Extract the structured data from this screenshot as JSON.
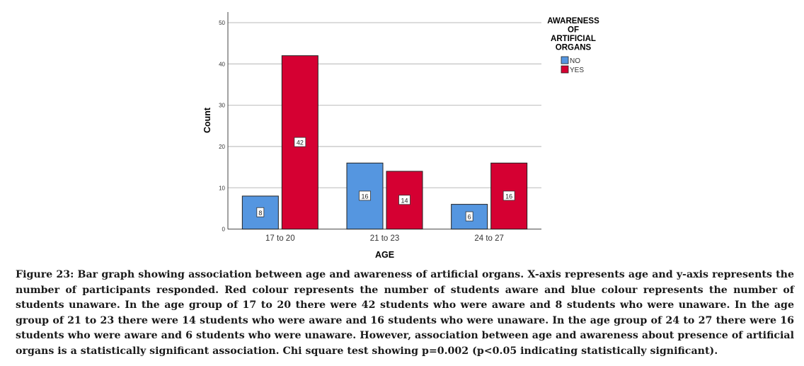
{
  "chart_data": {
    "type": "bar",
    "categories": [
      "17 to 20",
      "21 to 23",
      "24 to 27"
    ],
    "series": [
      {
        "name": "NO",
        "color": "#5596e0",
        "values": [
          8,
          16,
          6
        ]
      },
      {
        "name": "YES",
        "color": "#d50032",
        "values": [
          42,
          14,
          16
        ]
      }
    ],
    "xlabel": "AGE",
    "ylabel": "Count",
    "ylim": [
      0,
      50
    ],
    "yticks": [
      0,
      10,
      20,
      30,
      40,
      50
    ],
    "grid": true,
    "legend_title": [
      "AWARENESS",
      "OF",
      "ARTIFICIAL",
      "ORGANS"
    ],
    "legend_placement": "top-right"
  },
  "caption": "Figure 23: Bar graph showing association between age and awareness of artificial organs. X-axis represents age and y-axis represents the number of participants responded.  Red colour represents the number of students aware and blue colour represents the number of students unaware.  In the age group of 17 to 20 there were 42 students who were aware and 8 students who were unaware. In the age group of 21 to 23 there were 14 students who were aware and 16 students who were unaware. In the age group of 24 to 27 there were 16 students who were aware and 6 students who were unaware.  However, association between age and awareness about presence of artificial organs is a statistically significant association. Chi square test showing p=0.002 (p<0.05 indicating statistically significant)."
}
